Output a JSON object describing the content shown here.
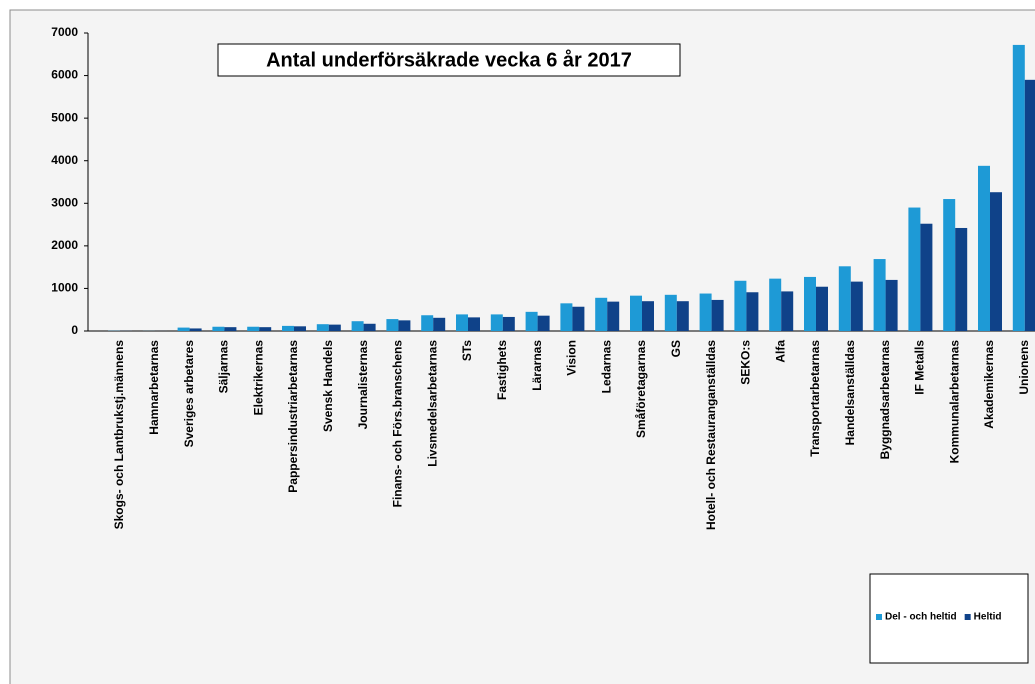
{
  "chart_data": {
    "type": "bar",
    "title": "Antal underförsäkrade vecka 6 år 2017",
    "categories": [
      "Skogs- och Lantbrukstj.männens",
      "Hamnarbetarnas",
      "Sveriges arbetares",
      "Säljarnas",
      "Elektrikernas",
      "Pappersindustriarbetarnas",
      "Svensk Handels",
      "Journalisternas",
      "Finans- och Förs.branschens",
      "Livsmedelsarbetarnas",
      "STs",
      "Fastighets",
      "Lärarnas",
      "Vision",
      "Ledarnas",
      "Småföretagarnas",
      "GS",
      "Hotell- och Restauranganställdas",
      "SEKO:s",
      "Alfa",
      "Transportarbetarnas",
      "Handelsanställdas",
      "Byggnadsarbetarnas",
      "IF Metalls",
      "Kommunalarbetarnas",
      "Akademikernas",
      "Unionens"
    ],
    "series": [
      {
        "name": "Del - och heltid",
        "color": "#1e9ad6",
        "values": [
          5,
          2,
          80,
          100,
          100,
          120,
          160,
          230,
          280,
          370,
          390,
          390,
          450,
          650,
          780,
          830,
          850,
          880,
          1180,
          1230,
          1270,
          1520,
          1690,
          2900,
          3100,
          3880,
          6720
        ]
      },
      {
        "name": "Heltid",
        "color": "#0f4289",
        "values": [
          3,
          1,
          60,
          90,
          90,
          110,
          150,
          170,
          250,
          310,
          320,
          330,
          360,
          570,
          690,
          700,
          700,
          730,
          910,
          930,
          1040,
          1160,
          1200,
          2520,
          2420,
          3260,
          5900
        ]
      }
    ],
    "ylim": [
      0,
      7000
    ],
    "yticks": [
      0,
      1000,
      2000,
      3000,
      4000,
      5000,
      6000,
      7000
    ]
  }
}
